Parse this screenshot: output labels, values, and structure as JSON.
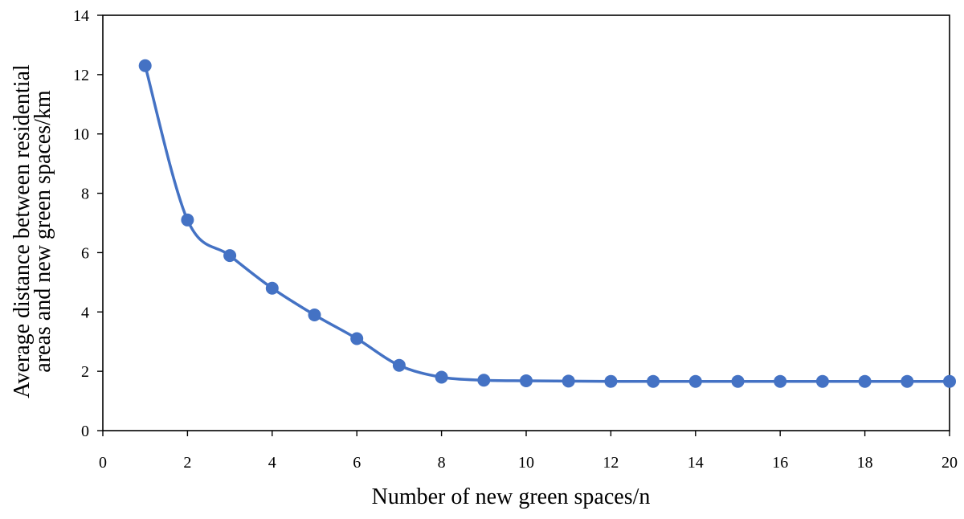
{
  "chart_data": {
    "type": "line",
    "title": "",
    "xlabel": "Number of new green spaces/n",
    "ylabel_lines": [
      "Average distance between residential",
      "areas and new green spaces/km"
    ],
    "xlim": [
      0,
      20
    ],
    "ylim": [
      0,
      14
    ],
    "x_ticks": [
      0,
      2,
      4,
      6,
      8,
      10,
      12,
      14,
      16,
      18,
      20
    ],
    "y_ticks": [
      0,
      2,
      4,
      6,
      8,
      10,
      12,
      14
    ],
    "grid": false,
    "legend": "none",
    "smoothed": true,
    "series": [
      {
        "color": "#4472C4",
        "x": [
          1,
          2,
          3,
          4,
          5,
          6,
          7,
          8,
          9,
          10,
          11,
          12,
          13,
          14,
          15,
          16,
          17,
          18,
          19,
          20
        ],
        "y": [
          12.3,
          7.1,
          5.9,
          4.8,
          3.9,
          3.1,
          2.2,
          1.8,
          1.7,
          1.68,
          1.67,
          1.66,
          1.66,
          1.66,
          1.66,
          1.66,
          1.66,
          1.66,
          1.66,
          1.66
        ]
      }
    ]
  }
}
